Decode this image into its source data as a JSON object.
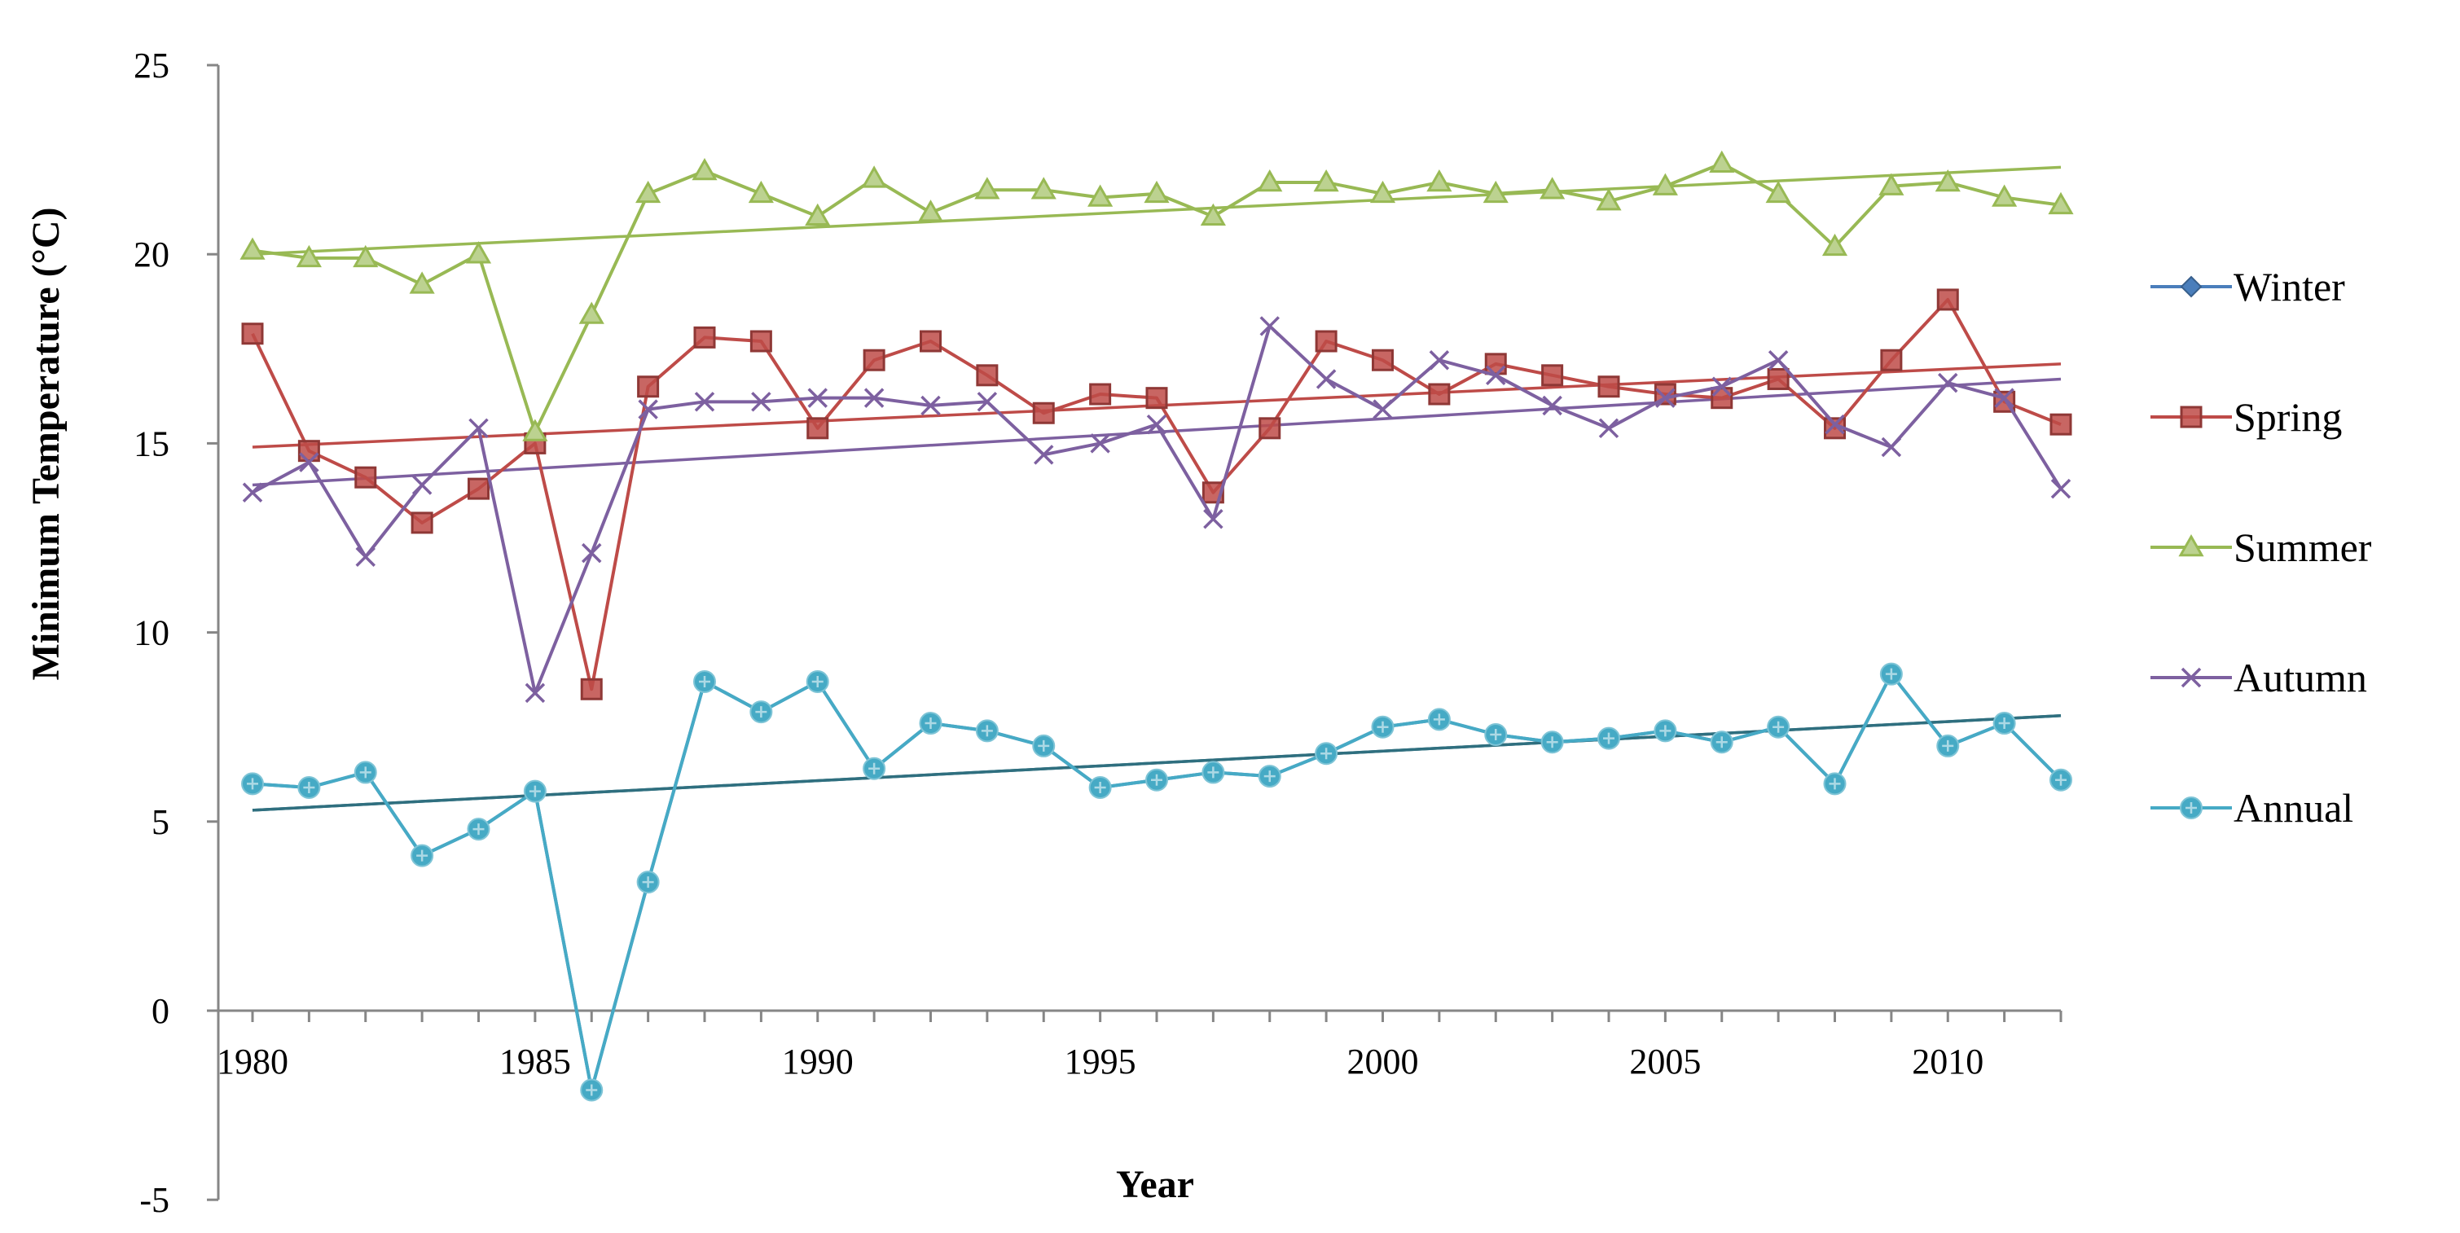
{
  "chart_data": {
    "type": "line",
    "title": "",
    "xlabel": "Year",
    "ylabel": "Minimum Temperature (°C)",
    "xlim": [
      1980,
      2012
    ],
    "ylim": [
      -5,
      25
    ],
    "x_ticks": [
      1980,
      1985,
      1990,
      1995,
      2000,
      2005,
      2010
    ],
    "y_ticks": [
      -5,
      0,
      5,
      10,
      15,
      20,
      25
    ],
    "legend_position": "right",
    "grid": false,
    "x": [
      1980,
      1981,
      1982,
      1983,
      1984,
      1985,
      1986,
      1987,
      1988,
      1989,
      1990,
      1991,
      1992,
      1993,
      1994,
      1995,
      1996,
      1997,
      1998,
      1999,
      2000,
      2001,
      2002,
      2003,
      2004,
      2005,
      2006,
      2007,
      2008,
      2009,
      2010,
      2011,
      2012
    ],
    "series": [
      {
        "name": "Winter",
        "color": "#4a7ebb",
        "marker": "diamond",
        "values": [
          6.0,
          5.9,
          6.3,
          4.1,
          4.8,
          5.8,
          -2.1,
          3.4,
          8.7,
          7.9,
          8.7,
          6.4,
          7.6,
          7.4,
          7.0,
          5.9,
          6.1,
          6.3,
          6.2,
          6.8,
          7.5,
          7.7,
          7.3,
          7.1,
          7.2,
          7.4,
          7.1,
          7.5,
          6.0,
          8.9,
          7.0,
          7.6,
          6.1
        ],
        "trend": [
          5.3,
          7.8
        ]
      },
      {
        "name": "Spring",
        "color": "#be4b48",
        "marker": "square",
        "values": [
          17.9,
          14.8,
          14.1,
          12.9,
          13.8,
          15.0,
          8.5,
          16.5,
          17.8,
          17.7,
          15.4,
          17.2,
          17.7,
          16.8,
          15.8,
          16.3,
          16.2,
          13.7,
          15.4,
          17.7,
          17.2,
          16.3,
          17.1,
          16.8,
          16.5,
          16.3,
          16.2,
          16.7,
          15.4,
          17.2,
          18.8,
          16.1,
          15.5
        ],
        "trend": [
          14.9,
          17.1
        ]
      },
      {
        "name": "Summer",
        "color": "#98b954",
        "marker": "triangle",
        "values": [
          20.1,
          19.9,
          19.9,
          19.2,
          20.0,
          15.3,
          18.4,
          21.6,
          22.2,
          21.6,
          21.0,
          22.0,
          21.1,
          21.7,
          21.7,
          21.5,
          21.6,
          21.0,
          21.9,
          21.9,
          21.6,
          21.9,
          21.6,
          21.7,
          21.4,
          21.8,
          22.4,
          21.6,
          20.2,
          21.8,
          21.9,
          21.5,
          21.3
        ],
        "trend": [
          20.0,
          22.3
        ]
      },
      {
        "name": "Autumn",
        "color": "#7d60a0",
        "marker": "x",
        "values": [
          13.7,
          14.5,
          12.0,
          13.9,
          15.4,
          8.4,
          12.1,
          15.9,
          16.1,
          16.1,
          16.2,
          16.2,
          16.0,
          16.1,
          14.7,
          15.0,
          15.5,
          13.0,
          18.1,
          16.7,
          15.9,
          17.2,
          16.8,
          16.0,
          15.4,
          16.2,
          16.5,
          17.2,
          15.5,
          14.9,
          16.6,
          16.2,
          13.8
        ],
        "trend": [
          13.9,
          16.7
        ]
      },
      {
        "name": "Annual",
        "color": "#46aac5",
        "marker": "star",
        "values": [
          6.0,
          5.9,
          6.3,
          4.1,
          4.8,
          5.8,
          -2.1,
          3.4,
          8.7,
          7.9,
          8.7,
          6.4,
          7.6,
          7.4,
          7.0,
          5.9,
          6.1,
          6.3,
          6.2,
          6.8,
          7.5,
          7.7,
          7.3,
          7.1,
          7.2,
          7.4,
          7.1,
          7.5,
          6.0,
          8.9,
          7.0,
          7.6,
          6.1
        ],
        "trend": [
          5.3,
          7.8
        ]
      }
    ]
  }
}
